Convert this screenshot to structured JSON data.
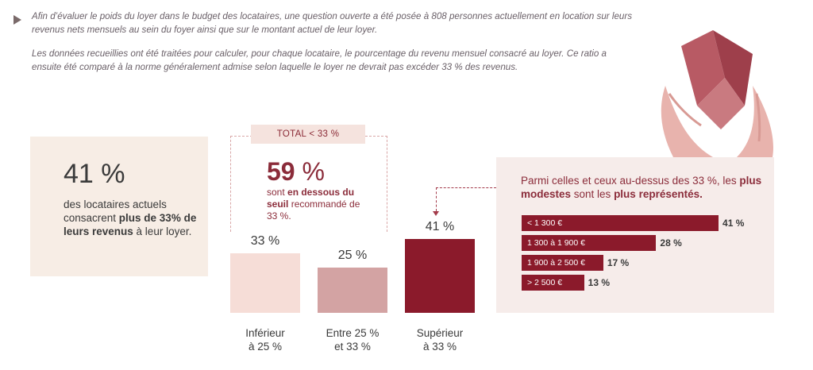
{
  "intro": {
    "p1": "Afin d’évaluer le poids du loyer dans le budget des locataires, une question ouverte a été posée à 808 personnes actuellement en location sur leurs revenus nets mensuels au sein du foyer ainsi que sur le montant actuel de leur loyer.",
    "p2": "Les données recueillies ont été traitées pour calculer, pour chaque locataire, le pourcentage du revenu mensuel consacré au loyer. Ce ratio a ensuite été comparé à la norme généralement admise selon laquelle le loyer ne devrait pas excéder 33 % des revenus."
  },
  "left_panel": {
    "big_value": "41 %",
    "text_before": "des locataires actuels consacrent ",
    "text_bold": "plus de 33% de leurs revenus",
    "text_after": " à leur loyer."
  },
  "total_tag": "TOTAL < 33 %",
  "below_threshold": {
    "value_num": "59",
    "value_sign": " %",
    "text_before": "sont ",
    "text_bold": "en dessous du seuil",
    "text_after": " recommandé de 33 %."
  },
  "right_panel": {
    "title_before": "Parmi celles et ceux au-dessus des 33 %, les ",
    "title_bold1": "plus modestes",
    "title_mid": " sont les ",
    "title_bold2": "plus représentés."
  },
  "chart_data": [
    {
      "type": "bar",
      "categories": [
        "Inférieur à 25 %",
        "Entre 25 % et 33 %",
        "Supérieur à 33 %"
      ],
      "category_lines": [
        [
          "Inférieur",
          "à 25 %"
        ],
        [
          "Entre 25 %",
          "et 33 %"
        ],
        [
          "Supérieur",
          "à 33 %"
        ]
      ],
      "values": [
        33,
        25,
        41
      ],
      "value_labels": [
        "33 %",
        "25 %",
        "41 %"
      ],
      "colors": [
        "#f6ddd7",
        "#d3a3a3",
        "#8b1a2b"
      ]
    },
    {
      "type": "bar",
      "orientation": "horizontal",
      "categories": [
        "< 1 300 €",
        "1 300 à 1 900 €",
        "1 900 à 2 500 €",
        "> 2 500 €"
      ],
      "values": [
        41,
        28,
        17,
        13
      ],
      "value_labels": [
        "41 %",
        "28 %",
        "17 %",
        "13 %"
      ],
      "color": "#8b1a2b"
    }
  ]
}
